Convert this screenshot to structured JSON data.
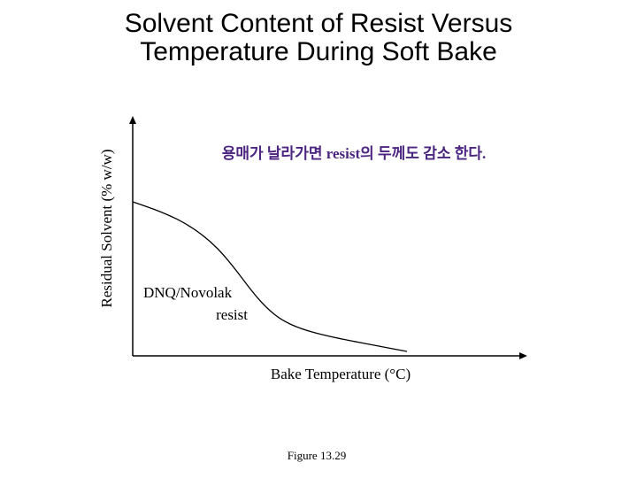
{
  "title": [
    "Solvent Content of Resist Versus",
    "Temperature During Soft Bake"
  ],
  "y_axis_label": "Residual Solvent (% w/w)",
  "x_axis_label": "Bake Temperature (°C)",
  "annotation": "용매가 날라가면 resist의 두께도 감소 한다.",
  "curve_label": [
    "DNQ/Novolak",
    "resist"
  ],
  "caption": "Figure 13.29"
}
